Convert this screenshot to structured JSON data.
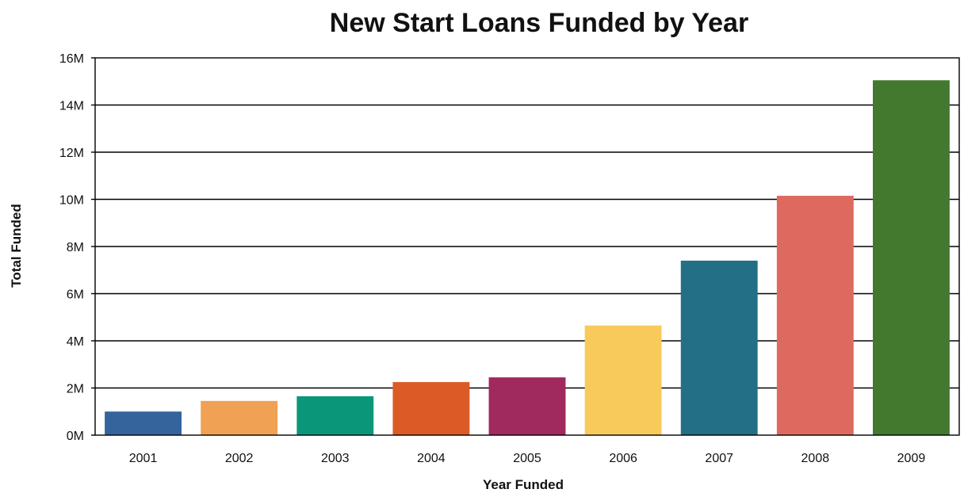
{
  "chart_data": {
    "type": "bar",
    "title": "New Start Loans Funded by Year",
    "xlabel": "Year Funded",
    "ylabel": "Total Funded",
    "categories": [
      "2001",
      "2002",
      "2003",
      "2004",
      "2005",
      "2006",
      "2007",
      "2008",
      "2009"
    ],
    "values": [
      1000000,
      1450000,
      1650000,
      2250000,
      2450000,
      4650000,
      7400000,
      10150000,
      15050000
    ],
    "colors": [
      "#35649C",
      "#F0A153",
      "#0A9779",
      "#DB5A26",
      "#A0295E",
      "#F8CA5C",
      "#236F85",
      "#DE6A5F",
      "#43782F"
    ],
    "ylim": [
      0,
      16000000
    ],
    "yticks": [
      "0M",
      "2M",
      "4M",
      "6M",
      "8M",
      "10M",
      "12M",
      "14M",
      "16M"
    ],
    "grid": true
  }
}
